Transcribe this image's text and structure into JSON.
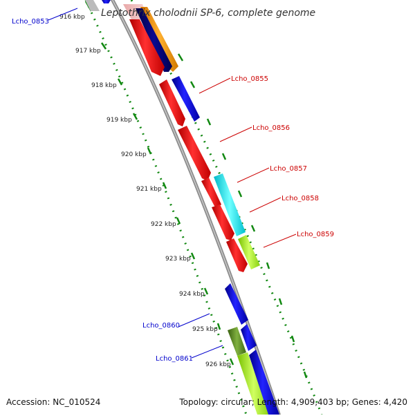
{
  "title": "Leptothrix cholodnii SP-6, complete genome",
  "footer": {
    "accession": "Accession: NC_010524",
    "summary": "Topology: circular; Length: 4,909,403 bp; Genes: 4,420"
  },
  "ruler": {
    "labels": [
      "916 kbp",
      "917 kbp",
      "918 kbp",
      "919 kbp",
      "920 kbp",
      "921 kbp",
      "922 kbp",
      "923 kbp",
      "924 kbp",
      "925 kbp",
      "926 kbp"
    ]
  },
  "gene_labels": {
    "Lcho_0853": "Lcho_0853",
    "Lcho_0855": "Lcho_0855",
    "Lcho_0856": "Lcho_0856",
    "Lcho_0857": "Lcho_0857",
    "Lcho_0858": "Lcho_0858",
    "Lcho_0859": "Lcho_0859",
    "Lcho_0860": "Lcho_0860",
    "Lcho_0861": "Lcho_0861"
  },
  "colors": {
    "forward_label": "#cc0000",
    "reverse_label": "#0000cc",
    "red": "#ff0000",
    "blue": "#0000ee",
    "navy": "#000080",
    "orange": "#ff9a10",
    "cyan": "#00f0f0",
    "lime": "#a8f020",
    "olive": "#5a8a20",
    "backbone": "#999999",
    "ruler": "#118811"
  }
}
